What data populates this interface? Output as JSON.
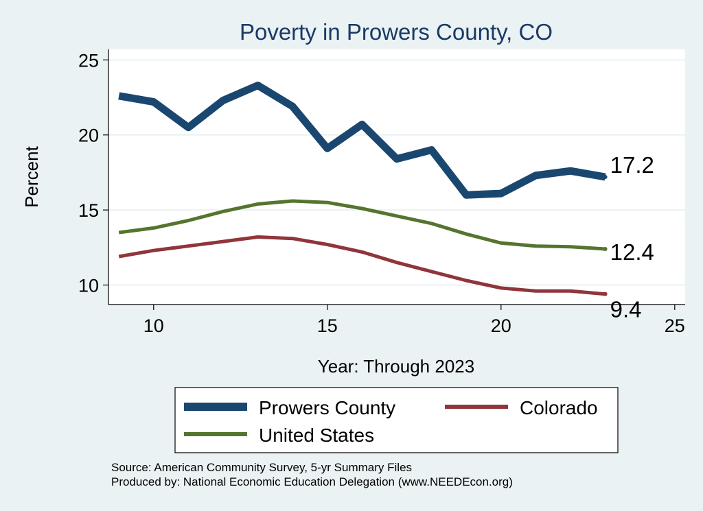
{
  "chart_data": {
    "type": "line",
    "title": "Poverty in Prowers County, CO",
    "xlabel": "Year: Through 2023",
    "ylabel": "Percent",
    "xlim": [
      8.7,
      25.3
    ],
    "ylim": [
      8.7,
      25.7
    ],
    "x_ticks": [
      10,
      15,
      20,
      25
    ],
    "y_ticks": [
      10,
      15,
      20,
      25
    ],
    "x": [
      9,
      10,
      11,
      12,
      13,
      14,
      15,
      16,
      17,
      18,
      19,
      20,
      21,
      22,
      23
    ],
    "grid": true,
    "series": [
      {
        "name": "Prowers County",
        "color": "#1a476f",
        "values": [
          22.6,
          22.2,
          20.5,
          22.3,
          23.3,
          21.9,
          19.1,
          20.7,
          18.4,
          19.0,
          16.0,
          16.1,
          17.3,
          17.6,
          17.2
        ],
        "end_label": "17.2"
      },
      {
        "name": "Colorado",
        "color": "#90353b",
        "values": [
          11.9,
          12.3,
          12.6,
          12.9,
          13.2,
          13.1,
          12.7,
          12.2,
          11.5,
          10.9,
          10.3,
          9.8,
          9.6,
          9.6,
          9.4
        ],
        "end_label": "9.4"
      },
      {
        "name": "United States",
        "color": "#55752f",
        "values": [
          13.5,
          13.8,
          14.3,
          14.9,
          15.4,
          15.6,
          15.5,
          15.1,
          14.6,
          14.1,
          13.4,
          12.8,
          12.6,
          12.55,
          12.4
        ],
        "end_label": "12.4"
      }
    ],
    "legend": {
      "placement": "bottom"
    }
  },
  "footer": {
    "source": "Source: American Community Survey, 5-yr Summary Files",
    "producer": "Produced by: National Economic Education Delegation (www.NEEDEcon.org)"
  }
}
